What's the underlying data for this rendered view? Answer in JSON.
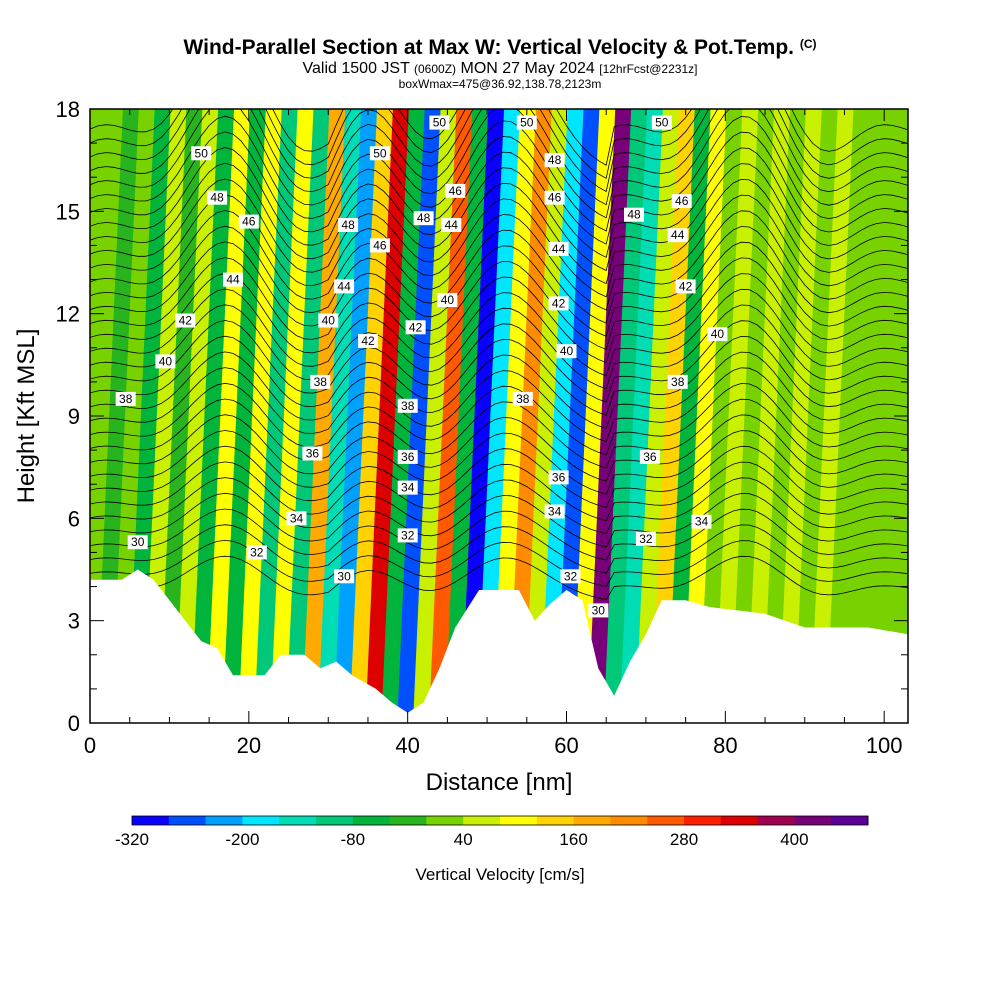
{
  "header": {
    "title_main": "Wind-Parallel Section at Max W: Vertical Velocity & Pot.Temp.",
    "title_mark": "(C)",
    "valid_prefix": "Valid 1500 JST",
    "valid_utc": "(0600Z)",
    "valid_date": "MON 27 May 2024",
    "forecast": "[12hrFcst@2231z]",
    "box_info": "boxWmax=475@36.92,138.78,2123m"
  },
  "chart_data": {
    "type": "heatmap",
    "xlabel": "Distance [nm]",
    "ylabel": "Height [Kft MSL]",
    "xlim": [
      0,
      103
    ],
    "ylim": [
      0,
      18
    ],
    "x_ticks": [
      "0",
      "20",
      "40",
      "60",
      "80",
      "100"
    ],
    "y_ticks": [
      "0",
      "3",
      "6",
      "9",
      "12",
      "15",
      "18"
    ],
    "colorbar": {
      "title": "Vertical Velocity [cm/s]",
      "min": -320,
      "max": 480,
      "step": 40,
      "tick_labels": [
        "-320",
        "-200",
        "-80",
        "40",
        "160",
        "280",
        "400"
      ],
      "colors": [
        "#0a00ff",
        "#0050ff",
        "#00a0ff",
        "#00e6ff",
        "#00dcb4",
        "#00c878",
        "#00b43c",
        "#28b41e",
        "#78d200",
        "#c8f000",
        "#ffff00",
        "#ffd200",
        "#ffaa00",
        "#ff8c00",
        "#ff5a00",
        "#ff1e00",
        "#dc0000",
        "#a00050",
        "#780078",
        "#5a0096"
      ]
    },
    "velocity_bands": [
      {
        "x": 2,
        "w": -20
      },
      {
        "x": 4,
        "w": 30
      },
      {
        "x": 6,
        "w": -60
      },
      {
        "x": 8,
        "w": 40
      },
      {
        "x": 10,
        "w": -30
      },
      {
        "x": 12,
        "w": 60
      },
      {
        "x": 14,
        "w": -60
      },
      {
        "x": 16,
        "w": 80
      },
      {
        "x": 18,
        "w": -70
      },
      {
        "x": 20,
        "w": 90
      },
      {
        "x": 22,
        "w": -100
      },
      {
        "x": 24,
        "w": 110
      },
      {
        "x": 26,
        "w": -120
      },
      {
        "x": 28,
        "w": 180
      },
      {
        "x": 30,
        "w": -160
      },
      {
        "x": 32,
        "w": -240
      },
      {
        "x": 34,
        "w": 120
      },
      {
        "x": 36,
        "w": 330
      },
      {
        "x": 38,
        "w": -60
      },
      {
        "x": 40,
        "w": -270
      },
      {
        "x": 42,
        "w": 70
      },
      {
        "x": 44,
        "w": 260
      },
      {
        "x": 46,
        "w": -80
      },
      {
        "x": 48,
        "w": -320
      },
      {
        "x": 50,
        "w": -200
      },
      {
        "x": 52,
        "w": 100
      },
      {
        "x": 54,
        "w": 220
      },
      {
        "x": 56,
        "w": 60
      },
      {
        "x": 58,
        "w": -200
      },
      {
        "x": 60,
        "w": -260
      },
      {
        "x": 62,
        "w": 80
      },
      {
        "x": 64,
        "w": 420
      },
      {
        "x": 66,
        "w": -90
      },
      {
        "x": 68,
        "w": -160
      },
      {
        "x": 70,
        "w": 60
      },
      {
        "x": 72,
        "w": 150
      },
      {
        "x": 74,
        "w": -60
      },
      {
        "x": 76,
        "w": 100
      },
      {
        "x": 78,
        "w": 30
      },
      {
        "x": 80,
        "w": 60
      },
      {
        "x": 82,
        "w": 20
      },
      {
        "x": 84,
        "w": 60
      },
      {
        "x": 86,
        "w": 10
      },
      {
        "x": 88,
        "w": 50
      },
      {
        "x": 90,
        "w": 10
      },
      {
        "x": 92,
        "w": 40
      },
      {
        "x": 94,
        "w": 10
      },
      {
        "x": 96,
        "w": 30
      },
      {
        "x": 98,
        "w": 0
      },
      {
        "x": 100,
        "w": 20
      },
      {
        "x": 102,
        "w": 0
      }
    ],
    "terrain": [
      [
        0,
        4.2
      ],
      [
        4,
        4.2
      ],
      [
        6,
        4.5
      ],
      [
        8,
        4.2
      ],
      [
        10,
        3.6
      ],
      [
        12,
        3.0
      ],
      [
        14,
        2.4
      ],
      [
        16,
        2.2
      ],
      [
        18,
        1.4
      ],
      [
        22,
        1.4
      ],
      [
        24,
        2.0
      ],
      [
        27,
        2.0
      ],
      [
        29,
        1.6
      ],
      [
        31,
        1.8
      ],
      [
        33,
        1.4
      ],
      [
        36,
        1.0
      ],
      [
        38,
        0.6
      ],
      [
        40,
        0.3
      ],
      [
        42,
        0.6
      ],
      [
        44,
        1.6
      ],
      [
        46,
        2.8
      ],
      [
        49,
        3.9
      ],
      [
        54,
        3.9
      ],
      [
        56,
        3.0
      ],
      [
        58,
        3.5
      ],
      [
        60,
        3.9
      ],
      [
        62,
        3.6
      ],
      [
        64,
        1.6
      ],
      [
        66,
        0.8
      ],
      [
        68,
        1.8
      ],
      [
        70,
        2.6
      ],
      [
        72,
        3.6
      ],
      [
        75,
        3.6
      ],
      [
        78,
        3.4
      ],
      [
        85,
        3.2
      ],
      [
        90,
        2.8
      ],
      [
        98,
        2.8
      ],
      [
        103,
        2.6
      ]
    ],
    "theta_contours": [
      30,
      32,
      34,
      36,
      38,
      40,
      42,
      44,
      46,
      48,
      50
    ],
    "contour_labels": [
      {
        "x": 6,
        "y": 5.3,
        "v": "30"
      },
      {
        "x": 21,
        "y": 5.0,
        "v": "32"
      },
      {
        "x": 26,
        "y": 6.0,
        "v": "34"
      },
      {
        "x": 28,
        "y": 7.9,
        "v": "36"
      },
      {
        "x": 29,
        "y": 10.0,
        "v": "38"
      },
      {
        "x": 30,
        "y": 11.8,
        "v": "40"
      },
      {
        "x": 12,
        "y": 11.8,
        "v": "42"
      },
      {
        "x": 18,
        "y": 13.0,
        "v": "44"
      },
      {
        "x": 20,
        "y": 14.7,
        "v": "46"
      },
      {
        "x": 16,
        "y": 15.4,
        "v": "48"
      },
      {
        "x": 14,
        "y": 16.7,
        "v": "50"
      },
      {
        "x": 9.5,
        "y": 10.6,
        "v": "40"
      },
      {
        "x": 4.5,
        "y": 9.5,
        "v": "38"
      },
      {
        "x": 32,
        "y": 4.3,
        "v": "30"
      },
      {
        "x": 40,
        "y": 5.5,
        "v": "32"
      },
      {
        "x": 40,
        "y": 6.9,
        "v": "34"
      },
      {
        "x": 40,
        "y": 7.8,
        "v": "36"
      },
      {
        "x": 40,
        "y": 9.3,
        "v": "38"
      },
      {
        "x": 35,
        "y": 11.2,
        "v": "42"
      },
      {
        "x": 32,
        "y": 12.8,
        "v": "44"
      },
      {
        "x": 32.5,
        "y": 14.6,
        "v": "48"
      },
      {
        "x": 36.5,
        "y": 14.0,
        "v": "46"
      },
      {
        "x": 36.5,
        "y": 16.7,
        "v": "50"
      },
      {
        "x": 41,
        "y": 11.6,
        "v": "42"
      },
      {
        "x": 45,
        "y": 12.4,
        "v": "40"
      },
      {
        "x": 45.5,
        "y": 14.6,
        "v": "44"
      },
      {
        "x": 42,
        "y": 14.8,
        "v": "48"
      },
      {
        "x": 46,
        "y": 15.6,
        "v": "46"
      },
      {
        "x": 44,
        "y": 17.6,
        "v": "50"
      },
      {
        "x": 54.5,
        "y": 9.5,
        "v": "38"
      },
      {
        "x": 55,
        "y": 17.6,
        "v": "50"
      },
      {
        "x": 58.5,
        "y": 16.5,
        "v": "48"
      },
      {
        "x": 58.5,
        "y": 15.4,
        "v": "46"
      },
      {
        "x": 59,
        "y": 13.9,
        "v": "44"
      },
      {
        "x": 59,
        "y": 12.3,
        "v": "42"
      },
      {
        "x": 60,
        "y": 10.9,
        "v": "40"
      },
      {
        "x": 59,
        "y": 7.2,
        "v": "36"
      },
      {
        "x": 58.5,
        "y": 6.2,
        "v": "34"
      },
      {
        "x": 60.5,
        "y": 4.3,
        "v": "32"
      },
      {
        "x": 64,
        "y": 3.3,
        "v": "30"
      },
      {
        "x": 70,
        "y": 5.4,
        "v": "32"
      },
      {
        "x": 77,
        "y": 5.9,
        "v": "34"
      },
      {
        "x": 70.5,
        "y": 7.8,
        "v": "36"
      },
      {
        "x": 74,
        "y": 10.0,
        "v": "38"
      },
      {
        "x": 79,
        "y": 11.4,
        "v": "40"
      },
      {
        "x": 75,
        "y": 12.8,
        "v": "42"
      },
      {
        "x": 74,
        "y": 14.3,
        "v": "44"
      },
      {
        "x": 74.5,
        "y": 15.3,
        "v": "46"
      },
      {
        "x": 68.5,
        "y": 14.9,
        "v": "48"
      },
      {
        "x": 72,
        "y": 17.6,
        "v": "50"
      }
    ]
  }
}
